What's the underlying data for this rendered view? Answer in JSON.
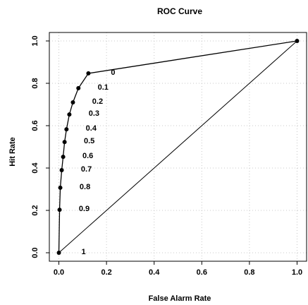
{
  "chart_data": {
    "type": "line",
    "title": "ROC Curve",
    "xlabel": "False Alarm Rate",
    "ylabel": "Hit Rate",
    "x": [
      0,
      0.003,
      0.006,
      0.012,
      0.018,
      0.024,
      0.032,
      0.044,
      0.059,
      0.082,
      0.124,
      1
    ],
    "values": [
      0,
      0.203,
      0.307,
      0.39,
      0.453,
      0.523,
      0.583,
      0.653,
      0.71,
      0.777,
      0.847,
      1
    ],
    "labels": [
      1,
      0.9,
      0.8,
      0.7,
      0.6,
      0.5,
      0.4,
      0.3,
      0.2,
      0.1,
      0,
      null
    ],
    "reference": {
      "x": [
        0,
        1
      ],
      "values": [
        0,
        1
      ]
    },
    "color": "#000000",
    "grid": true,
    "xlim": [
      -0.04,
      1.04
    ],
    "ylim": [
      -0.04,
      1.04
    ],
    "xticks": [
      {
        "value": 0,
        "label": "0.0"
      },
      0.2,
      0.4,
      0.6,
      0.8,
      {
        "value": 1,
        "label": "1.0"
      }
    ],
    "yticks": [
      {
        "value": 0,
        "label": "0.0"
      },
      0.2,
      0.4,
      0.6,
      0.8,
      {
        "value": 1,
        "label": "1.0"
      }
    ]
  }
}
